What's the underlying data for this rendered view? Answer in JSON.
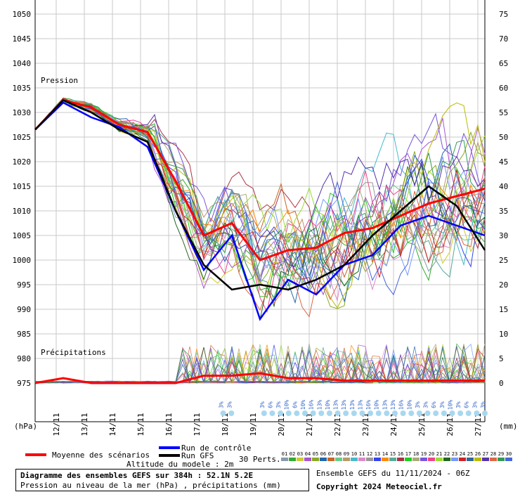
{
  "chart_data": {
    "type": "line",
    "title": "Diagramme des ensembles GEFS sur 384h : 52.1N 5.2E",
    "subtitle": "Pression au niveau de la mer (hPa) , précipitations (mm)",
    "panel_label_pressure": "Pression",
    "panel_label_precip": "Précipitations",
    "y_left_unit": "(hPa)",
    "y_right_unit": "(mm)",
    "y_left_ticks": [
      975,
      980,
      985,
      990,
      995,
      1000,
      1005,
      1010,
      1015,
      1020,
      1025,
      1030,
      1035,
      1040,
      1045,
      1050
    ],
    "y_right_ticks": [
      0,
      5,
      10,
      15,
      20,
      25,
      30,
      35,
      40,
      45,
      50,
      55,
      60,
      65,
      70,
      75
    ],
    "ylim_left": [
      975,
      1050
    ],
    "ylim_right": [
      0,
      75
    ],
    "x_dates": [
      "12/11",
      "13/11",
      "14/11",
      "15/11",
      "16/11",
      "17/11",
      "18/11",
      "19/11",
      "20/11",
      "21/11",
      "22/11",
      "23/11",
      "24/11",
      "25/11",
      "26/11",
      "27/11"
    ],
    "x_range_hours": [
      0,
      384
    ],
    "snow_markers": [
      {
        "t": 276,
        "label": "3%"
      },
      {
        "t": 288,
        "label": "3%"
      },
      {
        "t": 336,
        "label": "3%"
      },
      {
        "t": 348,
        "label": "6%"
      },
      {
        "t": 360,
        "label": "3%"
      },
      {
        "t": 372,
        "label": "10%"
      },
      {
        "t": 384,
        "label": "6%"
      },
      {
        "t": 396,
        "label": "10%"
      },
      {
        "t": 408,
        "label": "16%"
      },
      {
        "t": 420,
        "label": "13%"
      },
      {
        "t": 432,
        "label": "10%"
      },
      {
        "t": 444,
        "label": "13%"
      },
      {
        "t": 456,
        "label": "13%"
      },
      {
        "t": 468,
        "label": "13%"
      },
      {
        "t": 480,
        "label": "13%"
      },
      {
        "t": 492,
        "label": "16%"
      },
      {
        "t": 504,
        "label": "10%"
      },
      {
        "t": 516,
        "label": "13%"
      },
      {
        "t": 528,
        "label": "13%"
      },
      {
        "t": 540,
        "label": "16%"
      },
      {
        "t": 552,
        "label": "10%"
      },
      {
        "t": 564,
        "label": "3%"
      },
      {
        "t": 576,
        "label": "3%"
      },
      {
        "t": 588,
        "label": "6%"
      },
      {
        "t": 600,
        "label": "3%"
      },
      {
        "t": 612,
        "label": "10%"
      },
      {
        "t": 624,
        "label": "3%"
      },
      {
        "t": 636,
        "label": "6%"
      },
      {
        "t": 648,
        "label": "3%"
      },
      {
        "t": 660,
        "label": "3%"
      }
    ],
    "series": [
      {
        "name": "Moyenne des scénarios",
        "color": "#ff0000",
        "x": [
          0,
          24,
          48,
          72,
          96,
          120,
          144,
          168,
          192,
          216,
          240,
          264,
          288,
          312,
          336,
          360,
          384
        ],
        "values": [
          1026.5,
          1032.5,
          1031,
          1027.5,
          1026,
          1016,
          1005,
          1007.5,
          1000,
          1002,
          1002.5,
          1005.5,
          1006.5,
          1009,
          1011.5,
          1013,
          1014.5
        ]
      },
      {
        "name": "Run de contrôle",
        "color": "#0000ff",
        "x": [
          0,
          24,
          48,
          72,
          96,
          120,
          144,
          168,
          192,
          216,
          240,
          264,
          288,
          312,
          336,
          360,
          384
        ],
        "values": [
          1026.5,
          1032,
          1029,
          1027,
          1023,
          1010,
          998,
          1005,
          988,
          996,
          993,
          999,
          1001,
          1007,
          1009,
          1007,
          1005
        ]
      },
      {
        "name": "Run GFS",
        "color": "#000000",
        "x": [
          0,
          24,
          48,
          72,
          96,
          120,
          144,
          168,
          192,
          216,
          240,
          264,
          288,
          312,
          336,
          360,
          384
        ],
        "values": [
          1026.5,
          1032.5,
          1030,
          1026.5,
          1024,
          1010,
          999,
          994,
          995,
          994,
          996,
          999,
          1005,
          1010,
          1015,
          1011,
          1002
        ]
      },
      {
        "name": "precip_mean",
        "color": "#ff0000",
        "x": [
          0,
          24,
          48,
          72,
          96,
          120,
          144,
          168,
          192,
          216,
          240,
          264,
          288,
          312,
          336,
          360,
          384
        ],
        "values": [
          0,
          1,
          0,
          0,
          0,
          0,
          1.5,
          1.5,
          2,
          1,
          1,
          0.5,
          0.5,
          0.5,
          0.5,
          0.5,
          0.5
        ]
      }
    ],
    "perturbation_count_label": "30 Perts.",
    "perturbation_ids": [
      "01",
      "02",
      "03",
      "04",
      "05",
      "06",
      "07",
      "08",
      "09",
      "10",
      "11",
      "12",
      "13",
      "14",
      "15",
      "16",
      "17",
      "18",
      "19",
      "20",
      "21",
      "22",
      "23",
      "24",
      "25",
      "26",
      "27",
      "28",
      "29",
      "30"
    ],
    "perturbation_colors": [
      "#8899aa",
      "#33aa33",
      "#cccc33",
      "#aa55cc",
      "#88aa22",
      "#2266aa",
      "#cc6622",
      "#66cc88",
      "#bb9966",
      "#44bbcc",
      "#dd88cc",
      "#999999",
      "#3344ee",
      "#ff8800",
      "#55aa99",
      "#aa3344",
      "#22cc22",
      "#aaaa77",
      "#7755dd",
      "#ee4488",
      "#99dd33",
      "#226622",
      "#7799ff",
      "#cc2222",
      "#336699",
      "#bbbb00",
      "#5533aa",
      "#dd6644",
      "#339955",
      "#4466dd"
    ],
    "legend_position": "bottom"
  },
  "footer": {
    "altitude": "Altitude du modele : 2m",
    "ensemble_run": "Ensemble GEFS du 11/11/2024 - 06Z",
    "copyright": "Copyright 2024 Meteociel.fr"
  }
}
